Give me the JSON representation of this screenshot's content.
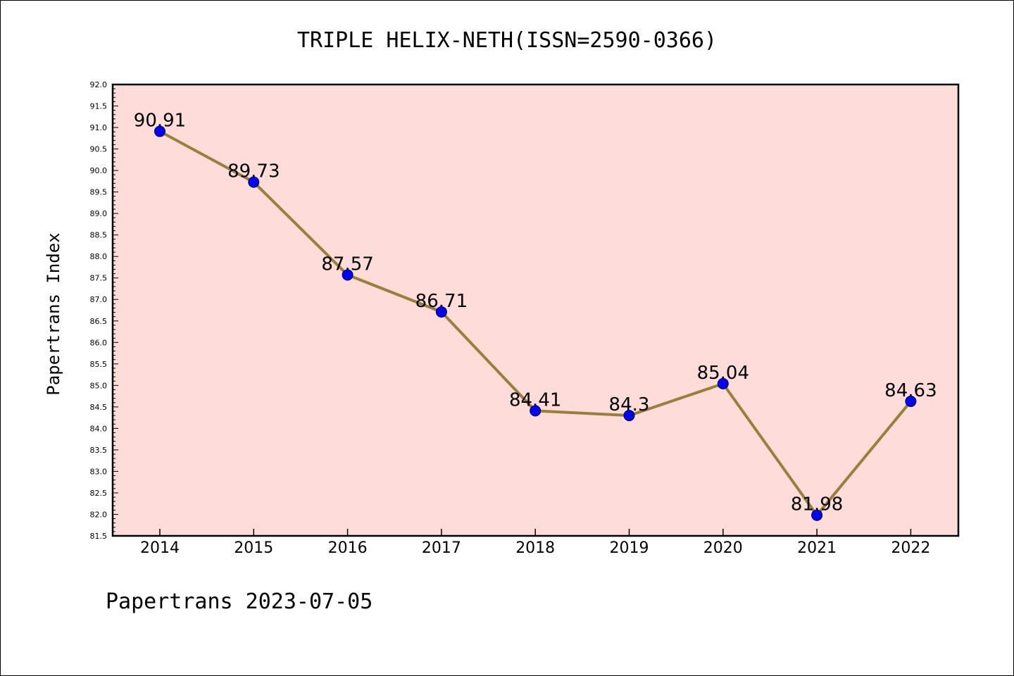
{
  "chart_data": {
    "type": "line",
    "title": "TRIPLE HELIX-NETH(ISSN=2590-0366)",
    "ylabel": "Papertrans Index",
    "xlabel": "",
    "footer": "Papertrans 2023-07-05",
    "categories": [
      "2014",
      "2015",
      "2016",
      "2017",
      "2018",
      "2019",
      "2020",
      "2021",
      "2022"
    ],
    "values": [
      90.91,
      89.73,
      87.57,
      86.71,
      84.41,
      84.3,
      85.04,
      81.98,
      84.63
    ],
    "data_labels": [
      "90.91",
      "89.73",
      "87.57",
      "86.71",
      "84.41",
      "84.3",
      "85.04",
      "81.98",
      "84.63"
    ],
    "ylim": [
      81.5,
      92.0
    ],
    "yticks": [
      "81.5",
      "82.0",
      "82.5",
      "83.0",
      "83.5",
      "84.0",
      "84.5",
      "85.0",
      "85.5",
      "86.0",
      "86.5",
      "87.0",
      "87.5",
      "88.0",
      "88.5",
      "89.0",
      "89.5",
      "90.0",
      "90.5",
      "91.0",
      "91.5",
      "92.0"
    ],
    "grid": false,
    "colors": {
      "plot_background": "#fddcd9",
      "line": "#9a7f3a",
      "marker": "#0000ff"
    }
  }
}
